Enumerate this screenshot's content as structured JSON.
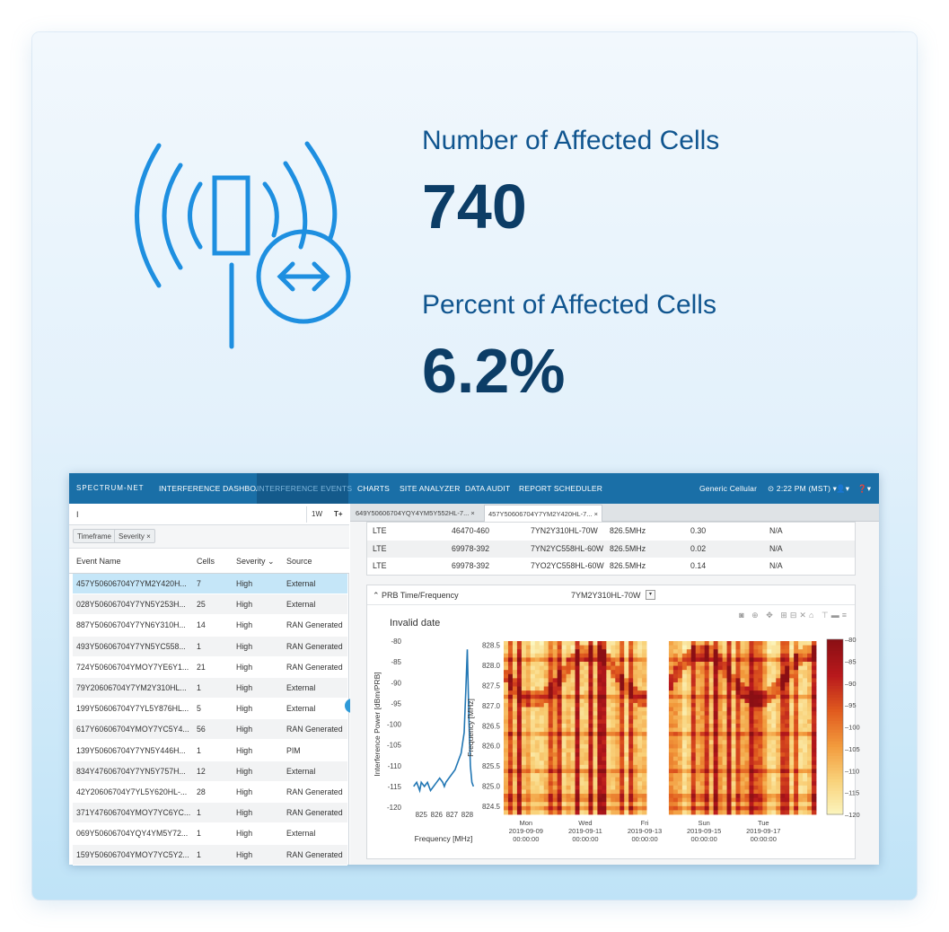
{
  "stats": {
    "affected_label": "Number of Affected Cells",
    "affected_value": "740",
    "percent_label": "Percent of Affected Cells",
    "percent_value": "6.2%"
  },
  "nav": {
    "brand": "SPECTRUM-NET",
    "items": [
      "INTERFERENCE DASHBOARD",
      "INTERFERENCE EVENTS",
      "CHARTS",
      "SITE ANALYZER",
      "DATA AUDIT",
      "REPORT SCHEDULER"
    ],
    "org": "Generic Cellular",
    "time": "2:22 PM (MST)",
    "user_icon": "user-icon",
    "help_icon": "help-icon"
  },
  "left": {
    "search_value": "I",
    "range_button": "1W",
    "filter_button": "T+",
    "chips": [
      "Timeframe",
      "Severity ×"
    ],
    "columns": [
      "Event Name",
      "Cells",
      "Severity",
      "Source"
    ],
    "rows": [
      {
        "name": "457Y50606704Y7YM2Y420H...",
        "cells": "7",
        "severity": "High",
        "source": "External"
      },
      {
        "name": "028Y50606704Y7YN5Y253H...",
        "cells": "25",
        "severity": "High",
        "source": "External"
      },
      {
        "name": "887Y50606704Y7YN6Y310H...",
        "cells": "14",
        "severity": "High",
        "source": "RAN Generated"
      },
      {
        "name": "493Y50606704Y7YN5YC558...",
        "cells": "1",
        "severity": "High",
        "source": "RAN Generated"
      },
      {
        "name": "724Y50606704YMOY7YE6Y1...",
        "cells": "21",
        "severity": "High",
        "source": "RAN Generated"
      },
      {
        "name": "79Y20606704Y7YM2Y310HL...",
        "cells": "1",
        "severity": "High",
        "source": "External"
      },
      {
        "name": "199Y50606704Y7YL5Y876HL...",
        "cells": "5",
        "severity": "High",
        "source": "External"
      },
      {
        "name": "617Y60606704YMOY7YC5Y4...",
        "cells": "56",
        "severity": "High",
        "source": "RAN Generated"
      },
      {
        "name": "139Y50606704Y7YN5Y446H...",
        "cells": "1",
        "severity": "High",
        "source": "PIM"
      },
      {
        "name": "834Y47606704Y7YN5Y757H...",
        "cells": "12",
        "severity": "High",
        "source": "External"
      },
      {
        "name": "42Y20606704Y7YL5Y620HL-...",
        "cells": "28",
        "severity": "High",
        "source": "RAN Generated"
      },
      {
        "name": "371Y47606704YMOY7YC6YC...",
        "cells": "1",
        "severity": "High",
        "source": "RAN Generated"
      },
      {
        "name": "069Y50606704YQY4YM5Y72...",
        "cells": "1",
        "severity": "High",
        "source": "External"
      },
      {
        "name": "159Y50606704YMOY7YC5Y2...",
        "cells": "1",
        "severity": "High",
        "source": "RAN Generated"
      }
    ]
  },
  "right": {
    "tabs": [
      "649Y50606704YQY4YM5Y552HL-7...  ×",
      "457Y50606704Y7YM2Y420HL-7...  ×"
    ],
    "measurements": [
      {
        "tech": "LTE",
        "id": "46470-460",
        "cell": "7YN2Y310HL-70W",
        "freq": "826.5MHz",
        "value": "0.30",
        "extra": "N/A"
      },
      {
        "tech": "LTE",
        "id": "69978-392",
        "cell": "7YN2YC558HL-60W",
        "freq": "826.5MHz",
        "value": "0.02",
        "extra": "N/A"
      },
      {
        "tech": "LTE",
        "id": "69978-392",
        "cell": "7YO2YC558HL-60W",
        "freq": "826.5MHz",
        "value": "0.14",
        "extra": "N/A"
      }
    ],
    "panel_title": "PRB Time/Frequency",
    "panel_select": "7YM2Y310HL-70W",
    "invalid_date": "Invalid date"
  },
  "chart_data": [
    {
      "type": "line",
      "xlabel": "Frequency [MHz]",
      "ylabel": "Interference Power [dBm/PRB]",
      "xlim": [
        824.4,
        828.5
      ],
      "ylim": [
        -120,
        -80
      ],
      "x_ticks": [
        "825",
        "826",
        "827",
        "828"
      ],
      "y_ticks": [
        "-80",
        "-85",
        "-90",
        "-95",
        "-100",
        "-105",
        "-110",
        "-115",
        "-120"
      ],
      "x": [
        824.5,
        824.7,
        824.9,
        825.0,
        825.2,
        825.4,
        825.6,
        825.8,
        826.0,
        826.2,
        826.4,
        826.5,
        826.6,
        826.8,
        827.0,
        827.2,
        827.4,
        827.6,
        827.8,
        827.9,
        828.0,
        828.1,
        828.2,
        828.3,
        828.4
      ],
      "y": [
        -115,
        -114,
        -116,
        -114,
        -115,
        -114,
        -116,
        -115,
        -114,
        -113,
        -114,
        -115,
        -114,
        -113,
        -112,
        -111,
        -109,
        -107,
        -102,
        -92,
        -82,
        -98,
        -110,
        -114,
        -115
      ]
    },
    {
      "type": "heatmap",
      "ylabel": "Frequency [MHz]",
      "y_ticks": [
        "828.5",
        "828.0",
        "827.5",
        "827.0",
        "826.5",
        "826.0",
        "825.5",
        "825.0",
        "824.5"
      ],
      "ylim": [
        824.3,
        828.6
      ],
      "x_ticks": [
        "Mon\n2019-09-09\n00:00:00",
        "Wed\n2019-09-11\n00:00:00",
        "Fri\n2019-09-13\n00:00:00",
        "Sun\n2019-09-15\n00:00:00",
        "Tue\n2019-09-17\n00:00:00"
      ],
      "colorbar_ticks": [
        "-80",
        "-85",
        "-90",
        "-95",
        "-100",
        "-105",
        "-110",
        "-115",
        "-120"
      ],
      "colorscale": [
        "#fbf6c0",
        "#f9d27a",
        "#f29a3c",
        "#e05a1e",
        "#b8191c",
        "#8b0f14"
      ],
      "zlim": [
        -120,
        -80
      ]
    }
  ]
}
